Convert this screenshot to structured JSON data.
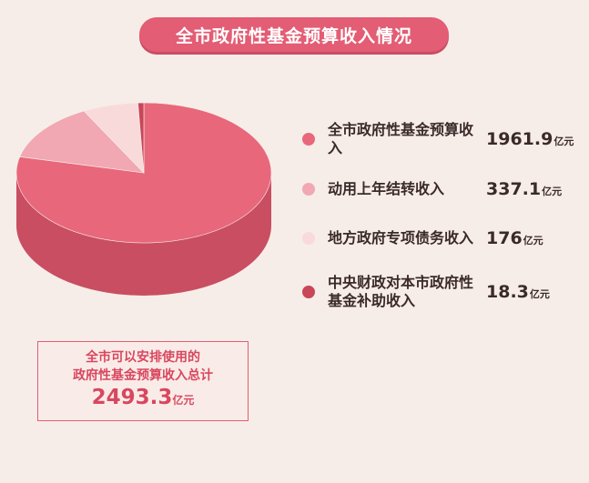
{
  "title": "全市政府性基金预算收入情况",
  "colors": {
    "accent": "#e35d74",
    "slice_top": [
      "#e8677a",
      "#f1a8b3",
      "#f9dadb",
      "#c94558"
    ],
    "slice_side": [
      "#c94e62",
      "#d98a96",
      "#e5bfc1",
      "#a83547"
    ]
  },
  "chart_data": {
    "type": "pie",
    "unit": "亿元",
    "labels": [
      "全市政府性基金预算收入",
      "动用上年结转收入",
      "地方政府专项债务收入",
      "中央财政对本市政府性基金补助收入"
    ],
    "values": [
      1961.9,
      337.1,
      176,
      18.3
    ]
  },
  "legend": [
    {
      "label": "全市政府性基金预算收入",
      "value": "1961.9",
      "unit": "亿元"
    },
    {
      "label": "动用上年结转收入",
      "value": "337.1",
      "unit": "亿元"
    },
    {
      "label": "地方政府专项债务收入",
      "value": "176",
      "unit": "亿元"
    },
    {
      "label": "中央财政对本市政府性基金补助收入",
      "value": "18.3",
      "unit": "亿元"
    }
  ],
  "total": {
    "label_line1": "全市可以安排使用的",
    "label_line2": "政府性基金预算收入总计",
    "value": "2493.3",
    "unit": "亿元"
  }
}
